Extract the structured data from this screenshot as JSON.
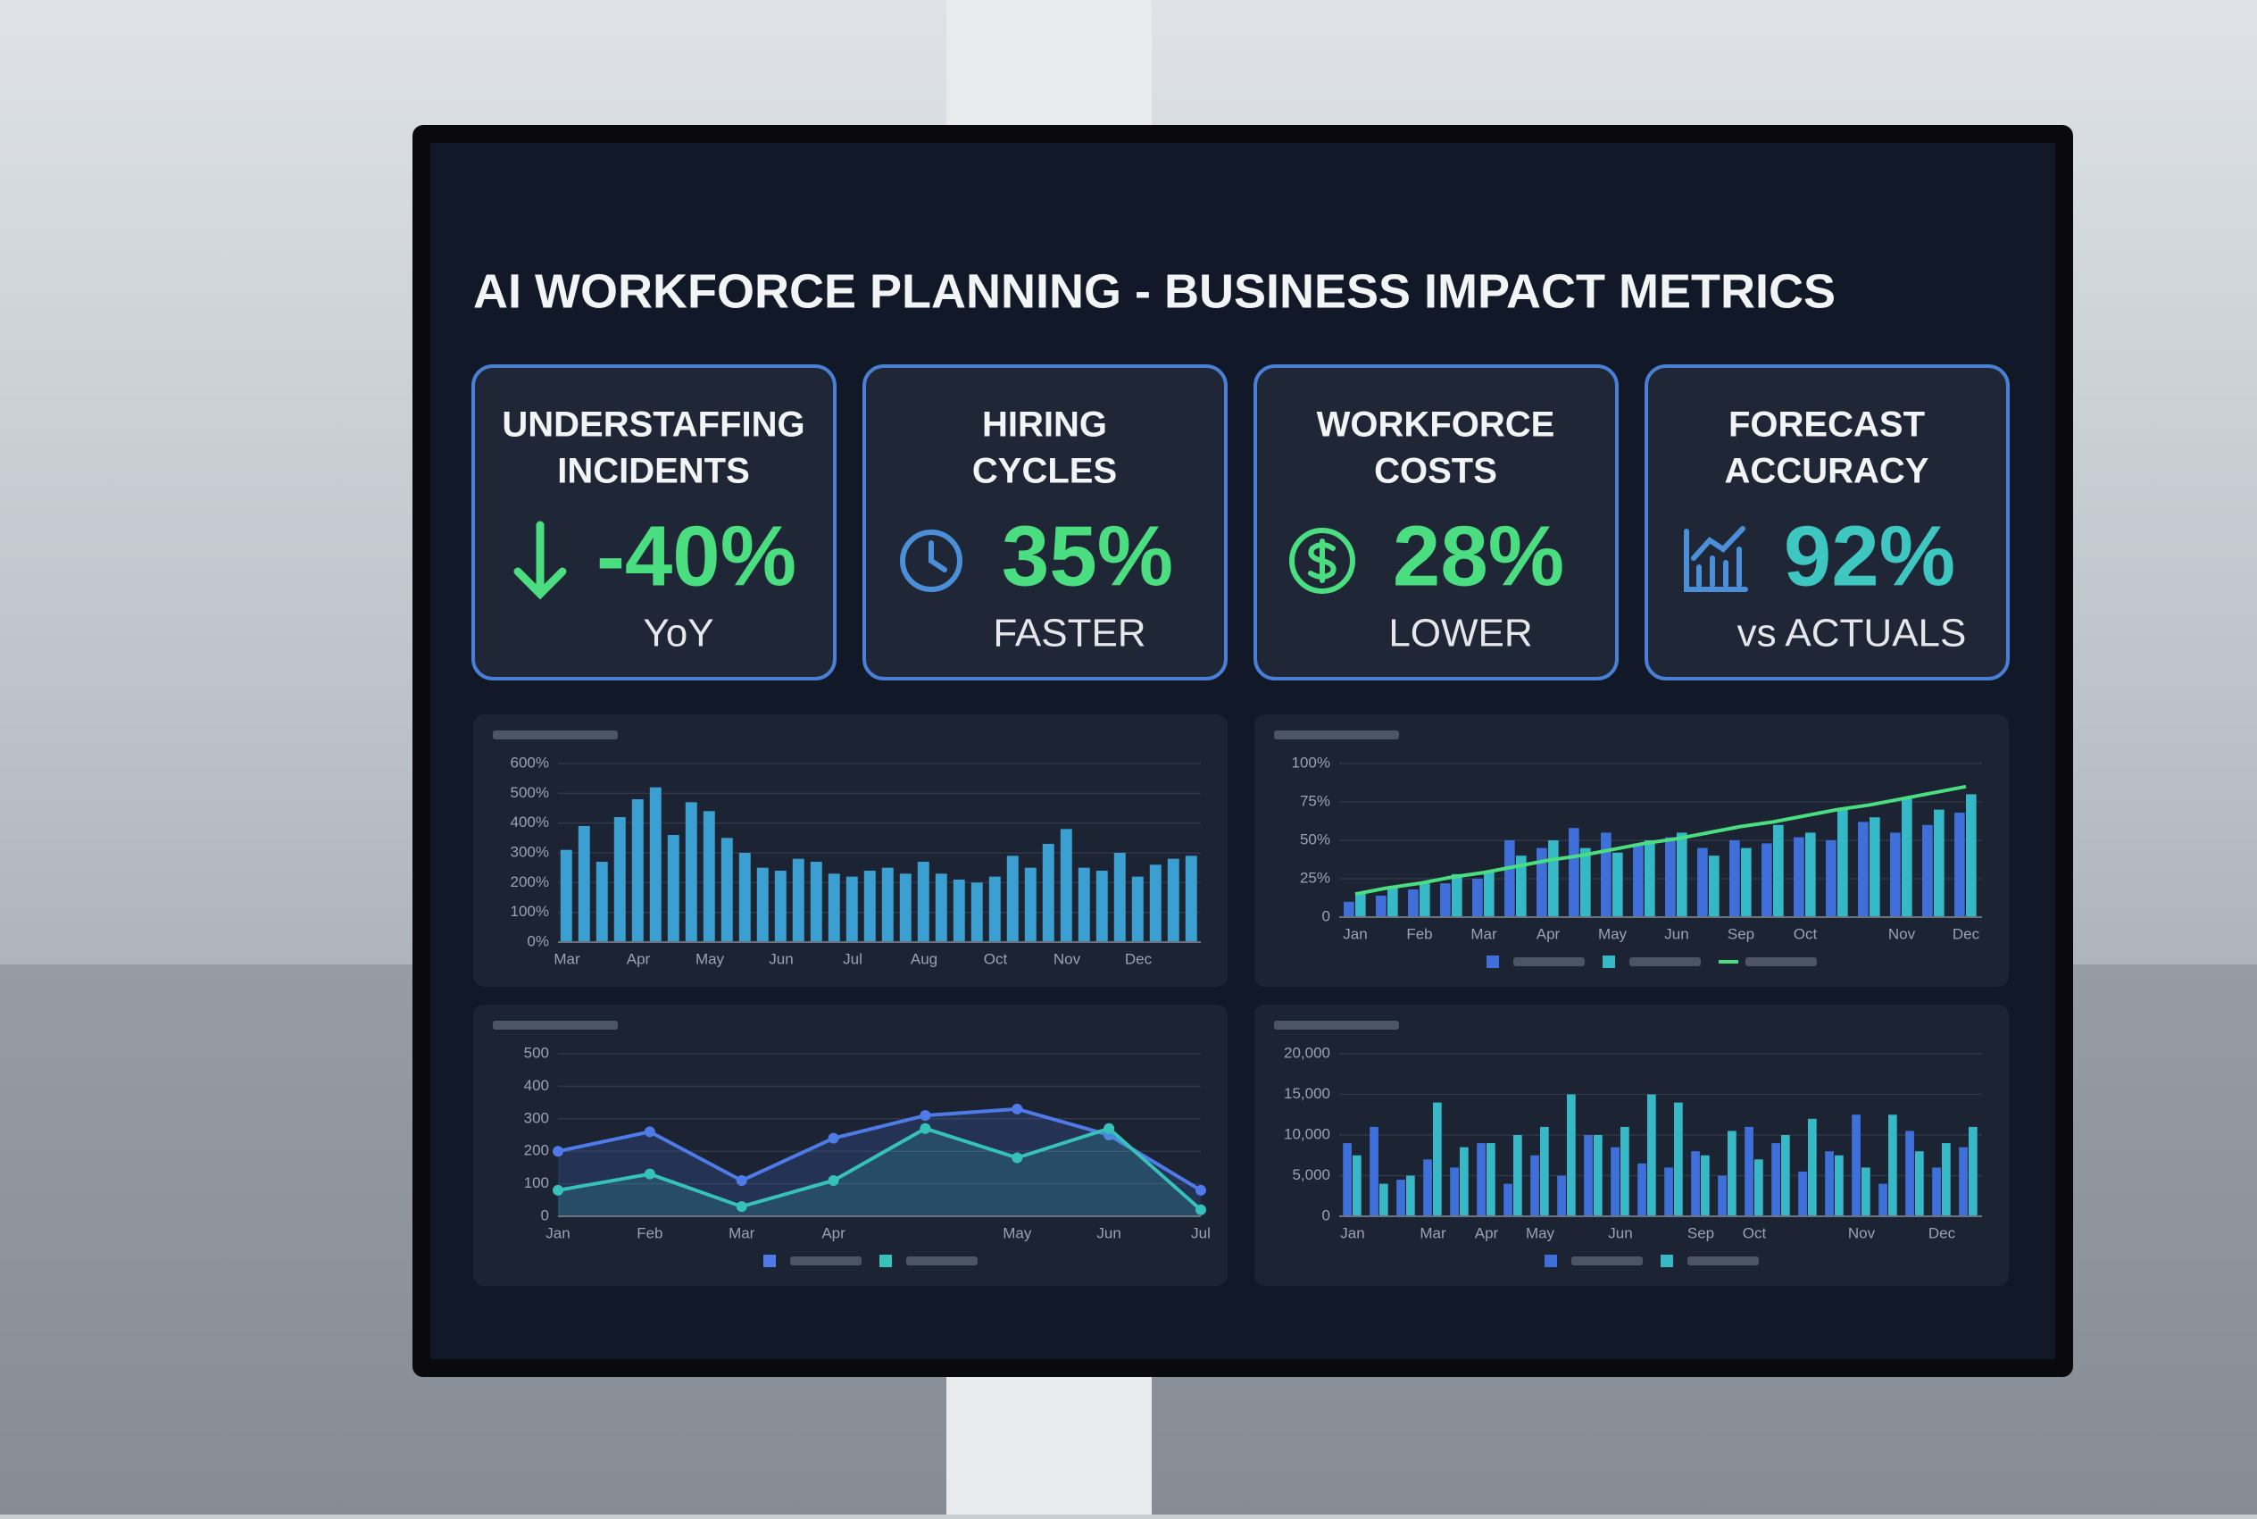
{
  "header": {
    "title": "AI WORKFORCE PLANNING - BUSINESS IMPACT METRICS"
  },
  "kpis": [
    {
      "label": [
        "UNDERSTAFFING",
        "INCIDENTS"
      ],
      "value": "-40%",
      "note": "YoY"
    },
    {
      "label": [
        "HIRING",
        "CYCLES"
      ],
      "value": "35%",
      "note": "FASTER"
    },
    {
      "label": [
        "WORKFORCE",
        "COSTS"
      ],
      "value": "28%",
      "note": "LOWER"
    },
    {
      "label": [
        "FORECAST",
        "ACCURACY"
      ],
      "value": "92%",
      "note": "vs ACTUALS"
    }
  ],
  "chart_data": [
    {
      "type": "bar",
      "categories": [
        "Mar",
        null,
        null,
        null,
        "Apr",
        null,
        null,
        null,
        "May",
        null,
        null,
        null,
        "Jun",
        null,
        null,
        null,
        "Jul",
        null,
        null,
        null,
        "Aug",
        null,
        null,
        null,
        "Oct",
        null,
        null,
        null,
        "Nov",
        null,
        null,
        null,
        "Dec",
        null,
        null,
        null
      ],
      "series": [
        {
          "color": "#3b9fd1",
          "values": [
            310,
            390,
            270,
            420,
            480,
            520,
            360,
            470,
            440,
            350,
            300,
            250,
            240,
            280,
            270,
            230,
            220,
            240,
            250,
            230,
            270,
            230,
            210,
            200,
            220,
            290,
            250,
            330,
            380,
            250,
            240,
            300,
            220,
            260,
            280,
            290
          ]
        }
      ],
      "ylim": [
        0,
        600
      ],
      "yticks": [
        {
          "value": 0,
          "label": "0%"
        },
        {
          "value": 100,
          "label": "100%"
        },
        {
          "value": 200,
          "label": "200%"
        },
        {
          "value": 300,
          "label": "300%"
        },
        {
          "value": 400,
          "label": "400%"
        },
        {
          "value": 500,
          "label": "500%"
        },
        {
          "value": 600,
          "label": "600%"
        }
      ],
      "grid": true
    },
    {
      "type": "bar",
      "categories": [
        "Jan",
        null,
        "Feb",
        null,
        "Mar",
        null,
        "Apr",
        null,
        "May",
        null,
        "Jun",
        null,
        "Sep",
        null,
        "Oct",
        null,
        null,
        "Nov",
        null,
        "Dec"
      ],
      "series": [
        {
          "color": "#3f6fd8",
          "values": [
            10,
            14,
            18,
            22,
            25,
            50,
            45,
            58,
            55,
            48,
            52,
            45,
            50,
            48,
            52,
            50,
            62,
            55,
            60,
            68
          ]
        },
        {
          "color": "#36b8c6",
          "values": [
            15,
            20,
            22,
            28,
            30,
            40,
            50,
            45,
            42,
            50,
            55,
            40,
            45,
            60,
            55,
            70,
            65,
            78,
            70,
            80
          ]
        },
        {
          "color": "#4ade80",
          "type": "line",
          "values": [
            15,
            19,
            22,
            26,
            29,
            33,
            37,
            40,
            44,
            48,
            51,
            55,
            59,
            62,
            66,
            70,
            73,
            77,
            81,
            85
          ]
        }
      ],
      "ylim": [
        0,
        100
      ],
      "yticks": [
        0,
        {
          "value": 25,
          "label": "25%"
        },
        {
          "value": 50,
          "label": "50%"
        },
        {
          "value": 75,
          "label": "75%"
        },
        {
          "value": 100,
          "label": "100%"
        }
      ],
      "grid": true
    },
    {
      "type": "area",
      "categories": [
        "Jan",
        "Feb",
        "Mar",
        "Apr",
        null,
        "May",
        "Jun",
        "Jul"
      ],
      "series": [
        {
          "color": "#4f7be8",
          "values": [
            200,
            260,
            110,
            240,
            310,
            330,
            250,
            80
          ]
        },
        {
          "color": "#36c2b8",
          "values": [
            80,
            130,
            30,
            110,
            270,
            180,
            270,
            20
          ]
        }
      ],
      "ylim": [
        0,
        500
      ],
      "yticks": [
        0,
        100,
        200,
        300,
        400,
        500
      ],
      "grid": true
    },
    {
      "type": "bar",
      "categories": [
        "Jan",
        null,
        null,
        "Mar",
        null,
        "Apr",
        null,
        "May",
        null,
        null,
        "Jun",
        null,
        null,
        "Sep",
        null,
        "Oct",
        null,
        null,
        null,
        "Nov",
        null,
        null,
        "Dec",
        null
      ],
      "series": [
        {
          "color": "#3f6fd8",
          "values": [
            9000,
            11000,
            4500,
            7000,
            6000,
            9000,
            4000,
            7500,
            5000,
            10000,
            8500,
            6500,
            6000,
            8000,
            5000,
            11000,
            9000,
            5500,
            8000,
            12500,
            4000,
            10500,
            6000,
            8500
          ]
        },
        {
          "color": "#36b8c6",
          "values": [
            7500,
            4000,
            5000,
            14000,
            8500,
            9000,
            10000,
            11000,
            15000,
            10000,
            11000,
            15000,
            14000,
            7500,
            10500,
            7000,
            10000,
            12000,
            7500,
            6000,
            12500,
            8000,
            9000,
            11000
          ]
        }
      ],
      "ylim": [
        0,
        20000
      ],
      "yticks": [
        0,
        {
          "value": 5000,
          "label": "5,000"
        },
        {
          "value": 10000,
          "label": "10,000"
        },
        {
          "value": 15000,
          "label": "15,000"
        },
        {
          "value": 20000,
          "label": "20,000"
        }
      ],
      "grid": true
    }
  ]
}
